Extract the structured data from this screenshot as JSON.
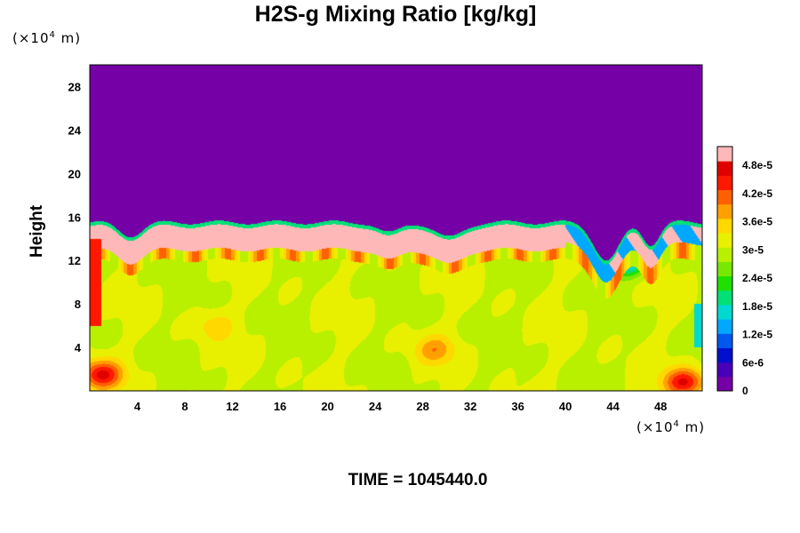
{
  "chart_data": {
    "type": "heatmap",
    "title": "H2S-g Mixing Ratio [kg/kg]",
    "ylabel": "Height",
    "xlabel": "",
    "x_unit": {
      "prefix": "(×10",
      "exp": "4",
      "suffix": " m)"
    },
    "y_unit": {
      "prefix": "(×10",
      "exp": "4",
      "suffix": " m)"
    },
    "footer": "TIME = 1045440.0",
    "xlim": [
      0,
      51.5
    ],
    "ylim": [
      0,
      30
    ],
    "x_ticks": [
      "4",
      "8",
      "12",
      "16",
      "20",
      "24",
      "28",
      "32",
      "36",
      "40",
      "44",
      "48"
    ],
    "y_ticks": [
      "4",
      "8",
      "12",
      "16",
      "20",
      "24",
      "28"
    ],
    "colorbar": {
      "range": [
        0,
        5.2e-05
      ],
      "tick_labels": [
        "0",
        "6e-6",
        "1.2e-5",
        "1.8e-5",
        "2.4e-5",
        "3e-5",
        "3.6e-5",
        "4.2e-5",
        "4.8e-5"
      ],
      "colors": [
        "#7500a6",
        "#4a00b8",
        "#0010cc",
        "#0058ee",
        "#00a8ff",
        "#00d8d0",
        "#00e078",
        "#20e000",
        "#78e800",
        "#b8f000",
        "#e8f000",
        "#ffd800",
        "#ffa000",
        "#ff6000",
        "#ff1800",
        "#e00000",
        "#ffb8b8"
      ]
    },
    "field": {
      "boundary_height": 15.5,
      "top_value": 0,
      "background_value": 3.05e-05,
      "near_boundary_value": 5e-05,
      "features": [
        {
          "x": 29,
          "y": 3.8,
          "value": 3.8e-05
        },
        {
          "x": 10.5,
          "y": 6,
          "value": 3.5e-05
        },
        {
          "x": 50,
          "y": 0.8,
          "value": 4.6e-05
        },
        {
          "x": 1,
          "y": 1.5,
          "value": 4.6e-05
        },
        {
          "x": 45,
          "y": 12,
          "value": 1e-05
        }
      ]
    }
  }
}
